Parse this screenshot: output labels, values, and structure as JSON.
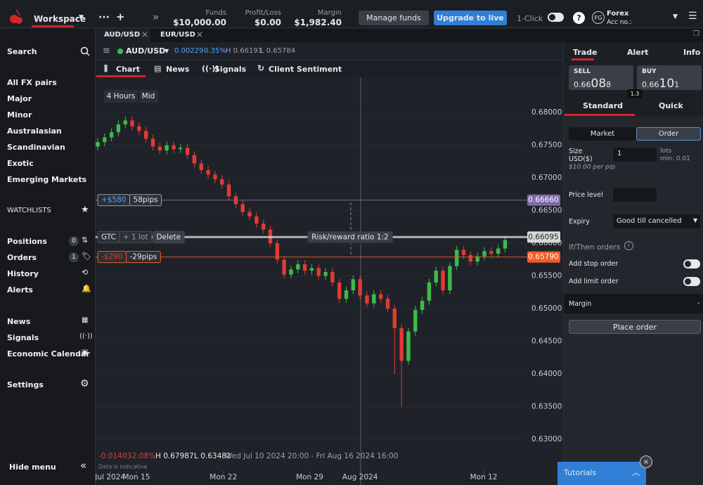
{
  "top_bar": {
    "workspace": "Workspace",
    "more": "···",
    "add": "+",
    "expand": "»",
    "funds": {
      "label": "Funds",
      "value": "$10,000.00"
    },
    "profit_loss": {
      "label": "Profit/Loss",
      "value": "$0.00"
    },
    "margin": {
      "label": "Margin",
      "value": "$1,982.40"
    },
    "manage_funds": "Manage funds",
    "upgrade": "Upgrade to live",
    "one_click": "1-Click",
    "help": "?",
    "account": {
      "initials": "FG",
      "name": "Forex",
      "number": "Acc no.:"
    }
  },
  "tabs": [
    "AUD/USD",
    "EUR/USD"
  ],
  "sidebar": {
    "search": "Search",
    "markets": [
      "All FX pairs",
      "Major",
      "Minor",
      "Australasian",
      "Scandinavian",
      "Exotic",
      "Emerging Markets"
    ],
    "watchlists": "WATCHLISTS",
    "account_items": [
      {
        "label": "Positions",
        "count": "0"
      },
      {
        "label": "Orders",
        "count": "1"
      },
      {
        "label": "History"
      },
      {
        "label": "Alerts"
      }
    ],
    "info_items": [
      "News",
      "Signals",
      "Economic Calendar"
    ],
    "settings": "Settings",
    "hide_menu": "Hide menu"
  },
  "toolbar": {
    "instrument": "AUD/USD",
    "change": "0.00229",
    "change_pct": "0.35%",
    "high": "H 0.66191",
    "low": "L 0.65784"
  },
  "view_tabs": [
    "Chart",
    "News",
    "Signals",
    "Client Sentiment"
  ],
  "chart_data": {
    "type": "candlestick",
    "interval": "4 Hours",
    "price_type": "Mid",
    "open": [
      0.6748,
      0.6755,
      0.6762,
      0.677,
      0.6782,
      0.6788,
      0.6779,
      0.6772,
      0.676,
      0.6748,
      0.6742,
      0.675,
      0.6744,
      0.6746,
      0.6735,
      0.6722,
      0.6712,
      0.6705,
      0.6698,
      0.669,
      0.6672,
      0.666,
      0.6648,
      0.6641,
      0.663,
      0.6621,
      0.66,
      0.6575,
      0.6552,
      0.656,
      0.6568,
      0.6558,
      0.6562,
      0.655,
      0.6556,
      0.654,
      0.6515,
      0.6528,
      0.6545,
      0.652,
      0.6508,
      0.6522,
      0.6515,
      0.65,
      0.647,
      0.642,
      0.6465,
      0.6498,
      0.6512,
      0.654,
      0.6558,
      0.6528,
      0.6565,
      0.659,
      0.6582,
      0.6572,
      0.658,
      0.6588,
      0.6584,
      0.6592
    ],
    "high": [
      0.6761,
      0.6768,
      0.6776,
      0.6788,
      0.6794,
      0.6794,
      0.6785,
      0.6778,
      0.6766,
      0.6754,
      0.6756,
      0.6756,
      0.6752,
      0.6752,
      0.6741,
      0.6728,
      0.6718,
      0.6711,
      0.6704,
      0.6696,
      0.6678,
      0.6666,
      0.6654,
      0.6647,
      0.6636,
      0.6627,
      0.6606,
      0.6581,
      0.6566,
      0.6574,
      0.6574,
      0.6568,
      0.6568,
      0.6562,
      0.6562,
      0.6546,
      0.6534,
      0.6551,
      0.6551,
      0.6526,
      0.6528,
      0.6528,
      0.6521,
      0.6506,
      0.6476,
      0.6471,
      0.6504,
      0.6518,
      0.6546,
      0.6564,
      0.6564,
      0.6571,
      0.6596,
      0.6596,
      0.6588,
      0.6586,
      0.6594,
      0.6594,
      0.6598,
      0.6611
    ],
    "low": [
      0.6742,
      0.6749,
      0.6756,
      0.6764,
      0.6776,
      0.6773,
      0.6766,
      0.6754,
      0.6742,
      0.6736,
      0.6736,
      0.6738,
      0.6738,
      0.6729,
      0.6716,
      0.6706,
      0.6699,
      0.6692,
      0.6684,
      0.6666,
      0.6654,
      0.6642,
      0.6635,
      0.6624,
      0.6615,
      0.6594,
      0.6569,
      0.6546,
      0.6546,
      0.6554,
      0.6552,
      0.6552,
      0.6544,
      0.6544,
      0.6534,
      0.6509,
      0.6509,
      0.6522,
      0.6514,
      0.6502,
      0.6502,
      0.6509,
      0.6494,
      0.64,
      0.635,
      0.6414,
      0.6459,
      0.6492,
      0.6506,
      0.6534,
      0.6522,
      0.6522,
      0.6559,
      0.6576,
      0.6566,
      0.6566,
      0.6574,
      0.6578,
      0.6578,
      0.6586
    ],
    "close": [
      0.6755,
      0.6762,
      0.677,
      0.6782,
      0.6788,
      0.6779,
      0.6772,
      0.676,
      0.6748,
      0.6742,
      0.675,
      0.6744,
      0.6746,
      0.6735,
      0.6722,
      0.6712,
      0.6705,
      0.6698,
      0.669,
      0.6672,
      0.666,
      0.6648,
      0.6641,
      0.663,
      0.6621,
      0.66,
      0.6575,
      0.6552,
      0.656,
      0.6568,
      0.6558,
      0.6562,
      0.655,
      0.6556,
      0.654,
      0.6515,
      0.6528,
      0.6545,
      0.652,
      0.6508,
      0.6522,
      0.6515,
      0.65,
      0.647,
      0.642,
      0.6465,
      0.6498,
      0.6512,
      0.654,
      0.6558,
      0.6528,
      0.6565,
      0.659,
      0.6582,
      0.6572,
      0.658,
      0.6588,
      0.6584,
      0.6592,
      0.6605
    ],
    "up_color": "#3dbb48",
    "down_color": "#e23a33",
    "ylim": [
      0.623,
      0.6854
    ],
    "yticks": [
      {
        "value": 0.68,
        "label": "0.68000"
      },
      {
        "value": 0.675,
        "label": "0.67500"
      },
      {
        "value": 0.67,
        "label": "0.67000"
      },
      {
        "value": 0.665,
        "label": "0.66500"
      },
      {
        "value": 0.66,
        "label": "0.66000"
      },
      {
        "value": 0.655,
        "label": "0.65500"
      },
      {
        "value": 0.65,
        "label": "0.65000"
      },
      {
        "value": 0.645,
        "label": "0.64500"
      },
      {
        "value": 0.64,
        "label": "0.64000"
      },
      {
        "value": 0.635,
        "label": "0.63500"
      },
      {
        "value": 0.63,
        "label": "0.63000"
      }
    ],
    "xlim": [
      -0.3,
      67.4
    ],
    "xticks": [
      {
        "value": 1.8,
        "label": "Jul 2024"
      },
      {
        "value": 5.6,
        "label": "Mon 15"
      },
      {
        "value": 18.2,
        "label": "Mon 22"
      },
      {
        "value": 30.7,
        "label": "Mon 29"
      },
      {
        "value": 38,
        "label": "Aug 2024"
      },
      {
        "value": 55.9,
        "label": "Mon 12"
      }
    ],
    "grid": true,
    "levels": [
      {
        "value": 0.6666,
        "label": "0.66660",
        "color": "#7d6aa8",
        "tags": [
          "+$580",
          "58pips"
        ]
      },
      {
        "value": 0.66095,
        "label": "0.66095",
        "color": "#d8d8d8",
        "tags": [
          "GTC",
          "+ 1 lot",
          "Delete"
        ]
      },
      {
        "value": 0.6579,
        "label": "0.65790",
        "color": "#f05a24",
        "tags": [
          "-$290",
          "-29pips"
        ]
      }
    ],
    "risk_reward": "Risk/reward ratio 1:2",
    "footer": {
      "change": "-0.01403",
      "change_pct": "-2.08%",
      "high": "H 0.67987",
      "low": "L 0.63482",
      "range": "Wed Jul 10 2024 20:00 - Fri Aug 16 2024 16:00",
      "note": "Data is indicative"
    }
  },
  "order_panel": {
    "tabs": [
      "Trade",
      "Alert",
      "Info"
    ],
    "sell": {
      "label": "SELL",
      "price_parts": [
        "0.66",
        "08",
        "8"
      ]
    },
    "buy": {
      "label": "BUY",
      "price_parts": [
        "0.66",
        "10",
        "1"
      ]
    },
    "spread": "1.3",
    "modes": [
      "Standard",
      "Quick"
    ],
    "order_types": [
      "Market",
      "Order"
    ],
    "size": {
      "label": "Size",
      "unit": "USD($)",
      "value": "1",
      "lots": "lots",
      "min": "min: 0.01",
      "per_pip": "$10.00 per pip"
    },
    "price_level": "Price level",
    "expiry": {
      "label": "Expiry",
      "value": "Good till cancelled"
    },
    "if_then": "If/Then orders",
    "add_stop": "Add stop order",
    "add_limit": "Add limit order",
    "margin": {
      "label": "Margin",
      "value": "-"
    },
    "place_order": "Place order"
  },
  "tutorials": "Tutorials"
}
